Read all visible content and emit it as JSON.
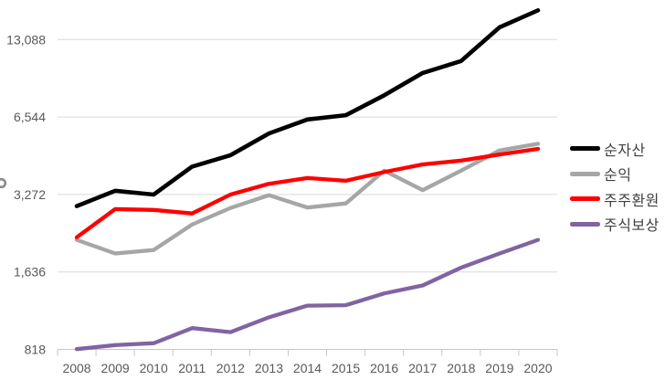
{
  "chart_data": {
    "type": "line",
    "title": "",
    "x_labels": [
      "2008",
      "2009",
      "2010",
      "2011",
      "2012",
      "2013",
      "2014",
      "2015",
      "2016",
      "2017",
      "2018",
      "2019",
      "2020"
    ],
    "series": [
      {
        "name": "순자산",
        "slug": "net-assets",
        "color": "#000000",
        "stroke_width": 4.6,
        "values": [
          2950,
          3380,
          3270,
          4200,
          4650,
          5650,
          6400,
          6650,
          7950,
          9700,
          10800,
          14600,
          17000
        ]
      },
      {
        "name": "순익",
        "slug": "net-income",
        "color": "#a6a6a6",
        "stroke_width": 4.3,
        "values": [
          2180,
          1930,
          1990,
          2500,
          2900,
          3250,
          2910,
          3020,
          4050,
          3400,
          4050,
          4850,
          5150
        ]
      },
      {
        "name": "주주환원",
        "slug": "shareholder-return",
        "color": "#ff0000",
        "stroke_width": 4.3,
        "values": [
          2230,
          2870,
          2850,
          2760,
          3270,
          3600,
          3790,
          3700,
          4000,
          4280,
          4430,
          4680,
          4920
        ]
      },
      {
        "name": "주식보상",
        "slug": "stock-compensation",
        "color": "#8064a2",
        "stroke_width": 4.3,
        "values": [
          820,
          850,
          865,
          990,
          955,
          1090,
          1210,
          1215,
          1350,
          1450,
          1700,
          1930,
          2180
        ]
      }
    ],
    "y_axis": {
      "scale": "log2",
      "base_value": 818,
      "ticks": [
        818,
        1636,
        3272,
        6544,
        13088
      ],
      "tick_labels": [
        "818",
        "1,636",
        "3,272",
        "6,544",
        "13,088"
      ]
    },
    "legend_position": "right",
    "grid": true
  },
  "colors": {
    "background": "#ffffff",
    "gridline": "#d9d9d9",
    "axis_line": "#c6c6c6",
    "tick_text": "#595959",
    "legend_text": "#404040",
    "artifact": "#8c8c8c"
  }
}
